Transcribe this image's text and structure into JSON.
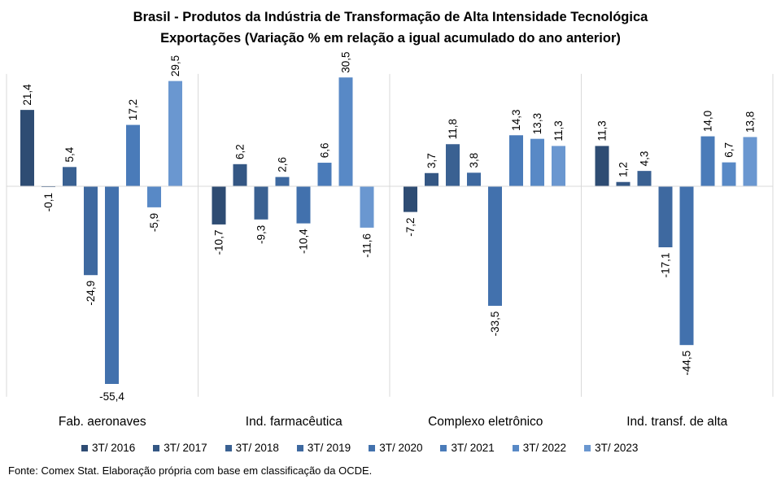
{
  "title_line1": "Brasil - Produtos da Indústria de Transformação  de Alta Intensidade Tecnológica",
  "title_line2": "Exportações (Variação % em relação a igual acumulado do ano anterior)",
  "source": "Fonte: Comex Stat. Elaboração própria com base em classificação da OCDE.",
  "colors": [
    "#2e4c73",
    "#345784",
    "#3a6192",
    "#3e69a0",
    "#4271ad",
    "#4a7bb9",
    "#5889c6",
    "#6a97d0"
  ],
  "chart_data": {
    "type": "bar",
    "title": "Brasil - Produtos da Indústria de Transformação  de Alta Intensidade Tecnológica — Exportações (Variação % em relação a igual acumulado do ano anterior)",
    "xlabel": "",
    "ylabel": "",
    "ylim": [
      -59,
      31.5
    ],
    "grid": false,
    "legend_position": "bottom",
    "categories": [
      "Fab. aeronaves",
      "Ind. farmacêutica",
      "Complexo eletrônico",
      "Ind. transf. de alta"
    ],
    "series": [
      {
        "name": "3T/ 2016",
        "values": [
          21.4,
          -10.7,
          -7.2,
          11.3
        ],
        "labels": [
          "21,4",
          "-10,7",
          "-7,2",
          "11,3"
        ]
      },
      {
        "name": "3T/ 2017",
        "values": [
          -0.1,
          6.2,
          3.7,
          1.2
        ],
        "labels": [
          "-0,1",
          "6,2",
          "3,7",
          "1,2"
        ]
      },
      {
        "name": "3T/ 2018",
        "values": [
          5.4,
          -9.3,
          11.8,
          4.3
        ],
        "labels": [
          "5,4",
          "-9,3",
          "11,8",
          "4,3"
        ]
      },
      {
        "name": "3T/ 2019",
        "values": [
          -24.9,
          2.6,
          3.8,
          -17.1
        ],
        "labels": [
          "-24,9",
          "2,6",
          "3,8",
          "-17,1"
        ]
      },
      {
        "name": "3T/ 2020",
        "values": [
          -55.4,
          -10.4,
          -33.5,
          -44.5
        ],
        "labels": [
          "-55,4",
          "-10,4",
          "-33,5",
          "-44,5"
        ]
      },
      {
        "name": "3T/ 2021",
        "values": [
          17.2,
          6.6,
          14.3,
          14.0
        ],
        "labels": [
          "17,2",
          "6,6",
          "14,3",
          "14,0"
        ]
      },
      {
        "name": "3T/ 2022",
        "values": [
          -5.9,
          30.5,
          13.3,
          6.7
        ],
        "labels": [
          "-5,9",
          "30,5",
          "13,3",
          "6,7"
        ]
      },
      {
        "name": "3T/ 2023",
        "values": [
          29.5,
          -11.6,
          11.3,
          13.8
        ],
        "labels": [
          "29,5",
          "-11,6",
          "11,3",
          "13,8"
        ]
      }
    ]
  }
}
